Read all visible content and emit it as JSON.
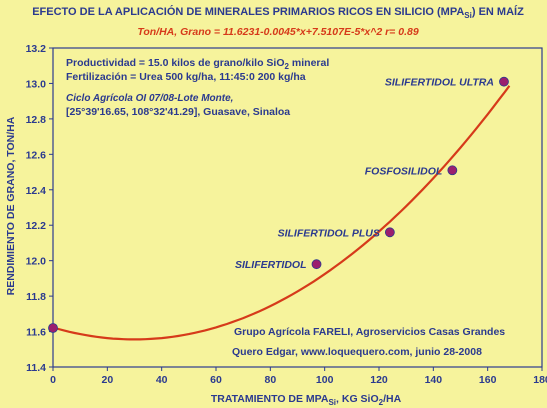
{
  "chart_data": {
    "type": "scatter",
    "title": "EFECTO DE LA APLICACIÓN DE MINERALES PRIMARIOS RICOS EN SILICIO (MPA",
    "title_sub": "Si",
    "title_end": ") EN MAÍZ",
    "equation": "Ton/HA, Grano = 11.6231-0.0045*x+7.5107E-5*x^2 r= 0.89",
    "xlabel": "TRATAMIENTO DE MPA",
    "xlabel_sub": "Si",
    "xlabel_end": ", KG SiO",
    "xlabel_sub2": "2",
    "xlabel_end2": "/HA",
    "ylabel": "RENDIMIENTO DE GRANO, TON/HA",
    "xlim": [
      0,
      180
    ],
    "ylim": [
      11.4,
      13.2
    ],
    "xticks": [
      "0",
      "20",
      "40",
      "60",
      "80",
      "100",
      "120",
      "140",
      "160",
      "180"
    ],
    "yticks": [
      "11.4",
      "11.6",
      "11.8",
      "12.0",
      "12.2",
      "12.4",
      "12.6",
      "12.8",
      "13.0",
      "13.2"
    ],
    "grid": false,
    "fit": {
      "a": 11.6231,
      "b": -0.0045,
      "c": 7.5107e-05
    },
    "points": [
      {
        "x": 0,
        "y": 11.62,
        "label": ""
      },
      {
        "x": 97,
        "y": 11.98,
        "label": "SILIFERTIDOL"
      },
      {
        "x": 124,
        "y": 12.16,
        "label": "SILIFERTIDOL PLUS"
      },
      {
        "x": 147,
        "y": 12.51,
        "label": "FOSFOSILIDOL"
      },
      {
        "x": 166,
        "y": 13.01,
        "label": "SILIFERTIDOL ULTRA"
      }
    ],
    "colors": {
      "background": "#f6f39c",
      "text": "#2b3a8f",
      "curve": "#d63a1a",
      "marker": "#9b1f6e"
    },
    "annotations": {
      "prod_pre": "Productividad = 15.0 kilos de grano/kilo SiO",
      "prod_sub": "2",
      "prod_post": " mineral",
      "fert": "Fertilización = Urea 500 kg/ha, 11:45:0 200 kg/ha",
      "ciclo": "Ciclo Agrícola OI 07/08-Lote Monte,",
      "coords": "[25°39'16.65, 108°32'41.29], Guasave, Sinaloa",
      "grupo": "Grupo Agrícola FARELI, Agroservicios Casas Grandes",
      "autor": "Quero Edgar, www.loquequero.com, junio 28-2008"
    }
  }
}
